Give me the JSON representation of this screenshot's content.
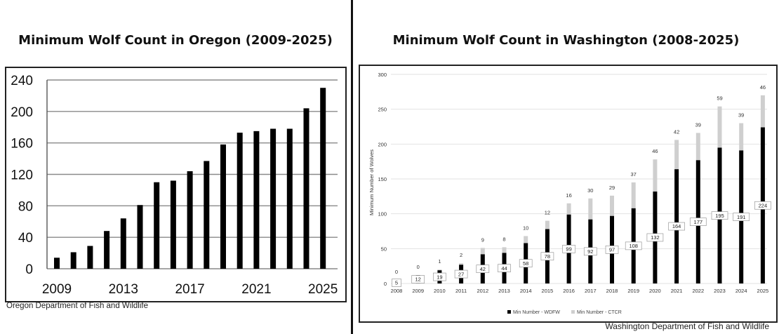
{
  "oregon": {
    "title": "Minimum Wolf Count in Oregon (2009-2025)",
    "source": "Oregon Department of Fish and Wildlife"
  },
  "washington": {
    "title": "Minimum Wolf Count in Washington (2008-2025)",
    "source": "Washington Department of Fish and Wildlife"
  },
  "chart_data": [
    {
      "type": "bar",
      "title": "Minimum Wolf Count in Oregon (2009-2025)",
      "xlabel": "",
      "ylabel": "",
      "categories": [
        "2009",
        "2010",
        "2011",
        "2012",
        "2013",
        "2014",
        "2015",
        "2016",
        "2017",
        "2018",
        "2019",
        "2020",
        "2021",
        "2022",
        "2023",
        "2024",
        "2025"
      ],
      "x_tick_labels": [
        "2009",
        "2013",
        "2017",
        "2021",
        "2025"
      ],
      "y_ticks": [
        0,
        40,
        80,
        120,
        160,
        200,
        240
      ],
      "values": [
        14,
        21,
        29,
        48,
        64,
        81,
        110,
        112,
        124,
        137,
        158,
        173,
        175,
        178,
        178,
        204,
        230
      ],
      "ylim": [
        0,
        240
      ],
      "grid": true,
      "bar_color": "#000000"
    },
    {
      "type": "bar",
      "stacked": true,
      "title": "Minimum Wolf Count in Washington (2008-2025)",
      "xlabel": "",
      "ylabel": "Minimum Number of Wolves",
      "categories": [
        "2008",
        "2009",
        "2010",
        "2011",
        "2012",
        "2013",
        "2014",
        "2015",
        "2016",
        "2017",
        "2018",
        "2019",
        "2020",
        "2021",
        "2022",
        "2023",
        "2024",
        "2025"
      ],
      "y_ticks": [
        0,
        50,
        100,
        150,
        200,
        250,
        300
      ],
      "ylim": [
        0,
        300
      ],
      "grid": true,
      "legend_position": "bottom",
      "series": [
        {
          "name": "Min Number - WDFW",
          "color": "#000000",
          "values": [
            5,
            12,
            19,
            27,
            42,
            44,
            58,
            78,
            99,
            92,
            97,
            108,
            132,
            164,
            177,
            195,
            191,
            224
          ]
        },
        {
          "name": "Min Number - CTCR",
          "color": "#cfcfcf",
          "values": [
            0,
            0,
            1,
            2,
            9,
            8,
            10,
            12,
            16,
            30,
            29,
            37,
            46,
            42,
            39,
            59,
            39,
            46
          ]
        }
      ]
    }
  ]
}
